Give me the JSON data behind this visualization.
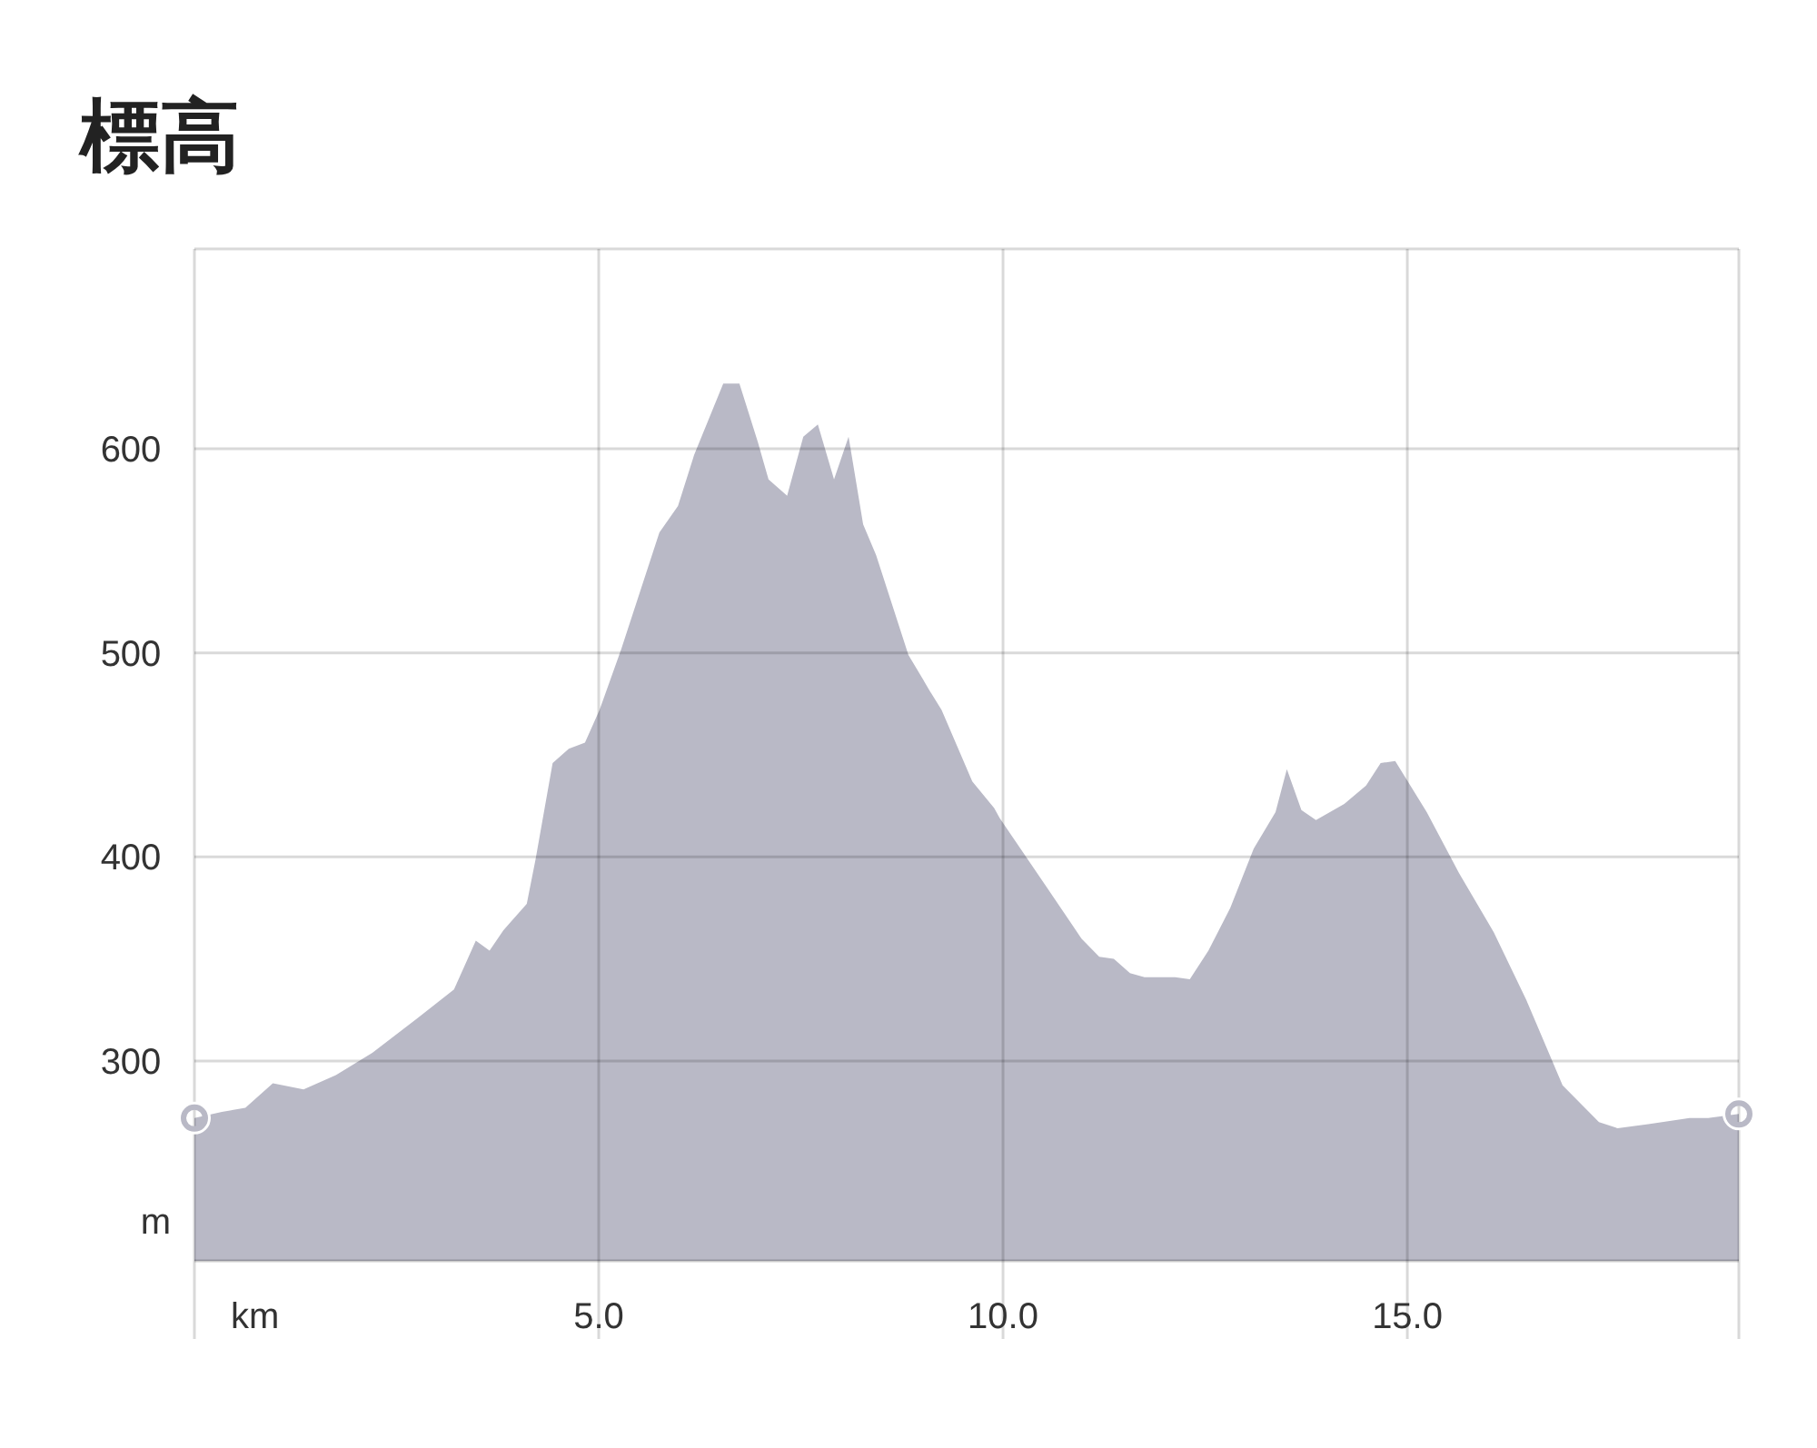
{
  "chart_data": {
    "type": "area",
    "title": "標高",
    "xlabel": "km",
    "ylabel": "m",
    "x": [
      0,
      0.34,
      0.63,
      0.97,
      1.35,
      1.75,
      2.2,
      2.76,
      3.21,
      3.48,
      3.65,
      3.82,
      4.11,
      4.22,
      4.43,
      4.63,
      4.83,
      5.01,
      5.28,
      5.75,
      5.98,
      6.18,
      6.54,
      6.74,
      6.97,
      7.1,
      7.33,
      7.53,
      7.71,
      7.91,
      8.09,
      8.27,
      8.43,
      8.83,
      9.1,
      9.24,
      9.62,
      9.89,
      9.96,
      10.56,
      10.97,
      11.19,
      11.37,
      11.57,
      11.75,
      12.13,
      12.31,
      12.54,
      12.81,
      13.1,
      13.37,
      13.51,
      13.69,
      13.87,
      14.22,
      14.49,
      14.67,
      14.85,
      15.24,
      15.64,
      16.07,
      16.47,
      16.92,
      17.37,
      17.6,
      17.98,
      18.49,
      18.72,
      19.1
    ],
    "series": [
      {
        "color": "#b9b9c6",
        "values": [
          272,
          275,
          277,
          289,
          286,
          293,
          304,
          321,
          335,
          359,
          354,
          364,
          377,
          399,
          446,
          453,
          456,
          472,
          502,
          559,
          572,
          597,
          632,
          632,
          603,
          585,
          577,
          606,
          612,
          585,
          606,
          563,
          548,
          499,
          481,
          472,
          437,
          424,
          419,
          384,
          360,
          351,
          350,
          343,
          341,
          341,
          340,
          354,
          375,
          404,
          422,
          443,
          423,
          418,
          426,
          435,
          446,
          447,
          422,
          392,
          363,
          330,
          288,
          270,
          267,
          269,
          272,
          272,
          274
        ]
      }
    ],
    "xlim": [
      0,
      19.1
    ],
    "ylim": [
      202,
      698
    ],
    "xticks": [
      {
        "value": 0,
        "label": null
      },
      {
        "value": 5,
        "label": "5.0"
      },
      {
        "value": 10,
        "label": "10.0"
      },
      {
        "value": 15,
        "label": "15.0"
      },
      {
        "value": 19.1,
        "label": null
      }
    ],
    "yticks": [
      300,
      400,
      500,
      600,
      {
        "value": 698,
        "label": null
      }
    ],
    "grid": true,
    "marker": "none"
  }
}
